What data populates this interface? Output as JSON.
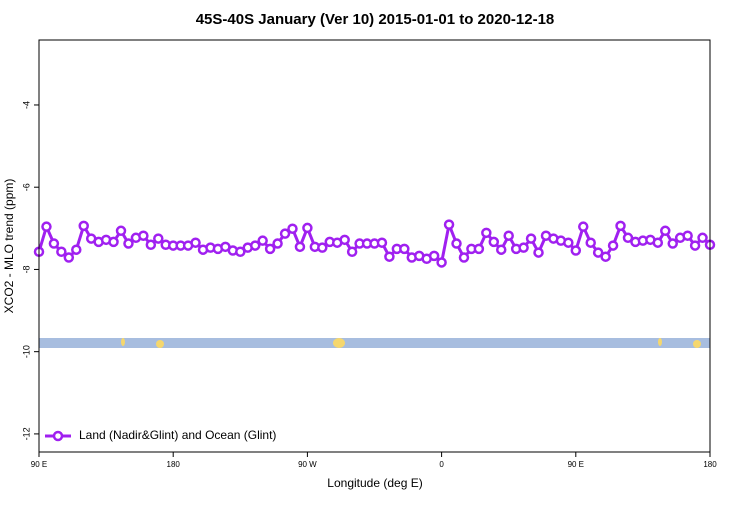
{
  "chart_data": {
    "type": "line",
    "title": "45S-40S January (Ver 10)   2015-01-01 to 2020-12-18",
    "x_label": "Longitude (deg E)",
    "y_label": "XCO2 - MLO trend (ppm)",
    "xlim": [
      90,
      540
    ],
    "xticks": [
      {
        "value": 90,
        "label": "90 E"
      },
      180,
      {
        "value": 270,
        "label": "90 W"
      },
      {
        "value": 360,
        "label": "0"
      },
      {
        "value": 450,
        "label": "90 E"
      },
      {
        "value": 540,
        "label": "180"
      }
    ],
    "ylim": [
      -12.44,
      -2.42
    ],
    "yticks": [
      -4,
      -6,
      -8,
      -10,
      -12
    ],
    "legend": "bottom-left",
    "x": [
      90,
      95,
      100,
      105,
      110,
      115,
      120,
      125,
      130,
      135,
      140,
      145,
      150,
      155,
      160,
      165,
      170,
      175,
      180,
      185,
      190,
      195,
      200,
      205,
      210,
      215,
      220,
      225,
      230,
      235,
      240,
      245,
      250,
      255,
      260,
      265,
      270,
      275,
      280,
      285,
      290,
      295,
      300,
      305,
      310,
      315,
      320,
      325,
      330,
      335,
      340,
      345,
      350,
      355,
      360,
      365,
      370,
      375,
      380,
      385,
      390,
      395,
      400,
      405,
      410,
      415,
      420,
      425,
      430,
      435,
      440,
      445,
      450,
      455,
      460,
      465,
      470,
      475,
      480,
      485,
      490,
      495,
      500,
      505,
      510,
      515,
      520,
      525,
      530,
      535,
      540
    ],
    "series": [
      {
        "name": "Land (Nadir&Glint) and Ocean (Glint)",
        "color": "#a020f0",
        "values": [
          -7.57,
          -6.96,
          -7.37,
          -7.57,
          -7.71,
          -7.52,
          -6.94,
          -7.25,
          -7.33,
          -7.28,
          -7.33,
          -7.06,
          -7.37,
          -7.23,
          -7.18,
          -7.4,
          -7.25,
          -7.4,
          -7.42,
          -7.42,
          -7.42,
          -7.35,
          -7.52,
          -7.47,
          -7.5,
          -7.45,
          -7.54,
          -7.57,
          -7.47,
          -7.42,
          -7.3,
          -7.5,
          -7.37,
          -7.13,
          -7.01,
          -7.45,
          -6.99,
          -7.45,
          -7.47,
          -7.33,
          -7.35,
          -7.28,
          -7.57,
          -7.37,
          -7.37,
          -7.37,
          -7.35,
          -7.69,
          -7.5,
          -7.5,
          -7.71,
          -7.67,
          -7.74,
          -7.67,
          -7.83,
          -6.91,
          -7.37,
          -7.71,
          -7.5,
          -7.5,
          -7.11,
          -7.33,
          -7.52,
          -7.18,
          -7.5,
          -7.47,
          -7.25,
          -7.59,
          -7.18,
          -7.25,
          -7.3,
          -7.35,
          -7.54,
          -6.96,
          -7.35,
          -7.59,
          -7.69,
          -7.42,
          -6.94,
          -7.23,
          -7.33,
          -7.3,
          -7.28,
          -7.35,
          -7.06,
          -7.37,
          -7.23,
          -7.18,
          -7.42,
          -7.23,
          -7.4
        ]
      }
    ]
  }
}
